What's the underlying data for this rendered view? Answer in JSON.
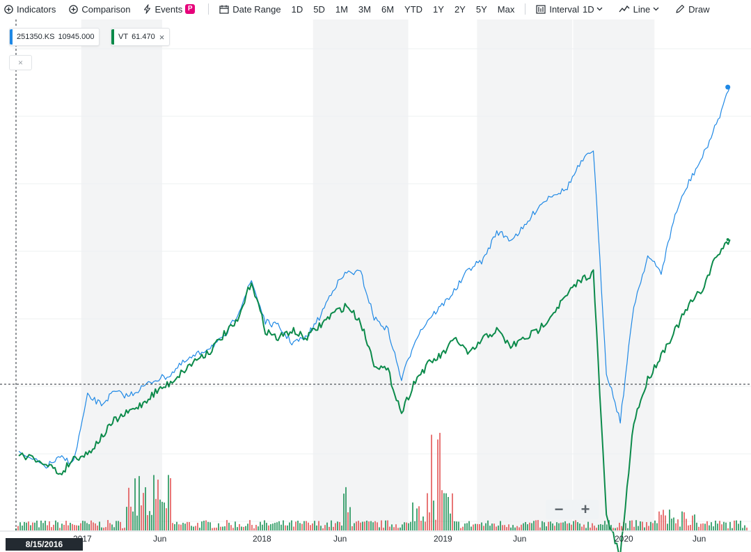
{
  "toolbar": {
    "indicators_label": "Indicators",
    "comparison_label": "Comparison",
    "events_label": "Events",
    "events_badge": "P",
    "date_range_label": "Date Range",
    "ranges": [
      "1D",
      "5D",
      "1M",
      "3M",
      "6M",
      "YTD",
      "1Y",
      "2Y",
      "5Y",
      "Max"
    ],
    "interval_label": "Interval",
    "interval_value": "1D",
    "chart_type_label": "Line",
    "draw_label": "Draw"
  },
  "legend": {
    "primary": {
      "symbol": "251350.KS",
      "value": "10945.000",
      "color": "#1e88e5"
    },
    "comparison": {
      "symbol": "VT",
      "value": "61.470",
      "color": "#0b8a4a"
    },
    "close_glyph": "×"
  },
  "crosshair_date": "8/15/2016",
  "zoom": {
    "minus": "−",
    "plus": "+"
  },
  "x_axis_labels": [
    "2017",
    "Jun",
    "2018",
    "Jun",
    "2019",
    "Jun",
    "2020",
    "Jun"
  ],
  "chart_data": {
    "type": "line",
    "title": "",
    "xlabel": "",
    "ylabel": "",
    "x_range": [
      "2016-08-15",
      "2020-12-31"
    ],
    "ylim_percent_change": [
      -30,
      100
    ],
    "series": [
      {
        "name": "251350.KS",
        "color": "#1e88e5",
        "x": [
          "2016-08",
          "2016-10",
          "2016-11",
          "2016-12",
          "2017-01",
          "2017-02",
          "2017-03",
          "2017-04",
          "2017-05",
          "2017-06",
          "2017-07",
          "2017-08",
          "2017-09",
          "2017-10",
          "2017-11",
          "2017-12",
          "2018-01",
          "2018-02",
          "2018-03",
          "2018-04",
          "2018-05",
          "2018-06",
          "2018-07",
          "2018-08",
          "2018-09",
          "2018-10",
          "2018-11",
          "2018-12",
          "2019-01",
          "2019-02",
          "2019-03",
          "2019-04",
          "2019-05",
          "2019-06",
          "2019-07",
          "2019-08",
          "2019-09",
          "2019-10",
          "2019-11",
          "2019-12",
          "2020-01",
          "2020-02",
          "2020-03",
          "2020-04",
          "2020-05",
          "2020-06",
          "2020-07",
          "2020-08",
          "2020-09",
          "2020-10",
          "2020-11",
          "2020-12"
        ],
        "pct_change": [
          0,
          -3,
          -1,
          -2,
          14,
          12,
          15,
          14,
          16,
          18,
          19,
          22,
          24,
          26,
          28,
          34,
          42,
          32,
          31,
          27,
          28,
          33,
          40,
          44,
          44,
          33,
          30,
          18,
          28,
          33,
          36,
          40,
          45,
          47,
          54,
          52,
          55,
          60,
          63,
          64,
          70,
          74,
          20,
          8,
          36,
          48,
          44,
          58,
          66,
          72,
          80,
          89
        ]
      },
      {
        "name": "VT",
        "color": "#0b8a4a",
        "x": [
          "2016-08",
          "2016-10",
          "2016-11",
          "2016-12",
          "2017-01",
          "2017-02",
          "2017-03",
          "2017-04",
          "2017-05",
          "2017-06",
          "2017-07",
          "2017-08",
          "2017-09",
          "2017-10",
          "2017-11",
          "2017-12",
          "2018-01",
          "2018-02",
          "2018-03",
          "2018-04",
          "2018-05",
          "2018-06",
          "2018-07",
          "2018-08",
          "2018-09",
          "2018-10",
          "2018-11",
          "2018-12",
          "2019-01",
          "2019-02",
          "2019-03",
          "2019-04",
          "2019-05",
          "2019-06",
          "2019-07",
          "2019-08",
          "2019-09",
          "2019-10",
          "2019-11",
          "2019-12",
          "2020-01",
          "2020-02",
          "2020-03",
          "2020-04",
          "2020-05",
          "2020-06",
          "2020-07",
          "2020-08",
          "2020-09",
          "2020-10",
          "2020-11",
          "2020-12"
        ],
        "pct_change": [
          0,
          -2,
          -5,
          -1,
          0,
          4,
          8,
          10,
          12,
          15,
          17,
          20,
          23,
          25,
          29,
          32,
          42,
          30,
          28,
          30,
          28,
          31,
          34,
          36,
          32,
          22,
          20,
          10,
          18,
          22,
          24,
          28,
          24,
          28,
          30,
          26,
          28,
          30,
          34,
          38,
          42,
          44,
          -15,
          -25,
          8,
          18,
          24,
          30,
          36,
          40,
          48,
          52
        ]
      }
    ],
    "volume_series": {
      "colors": {
        "up": "#0b8a4a",
        "down": "#e04848"
      }
    }
  }
}
